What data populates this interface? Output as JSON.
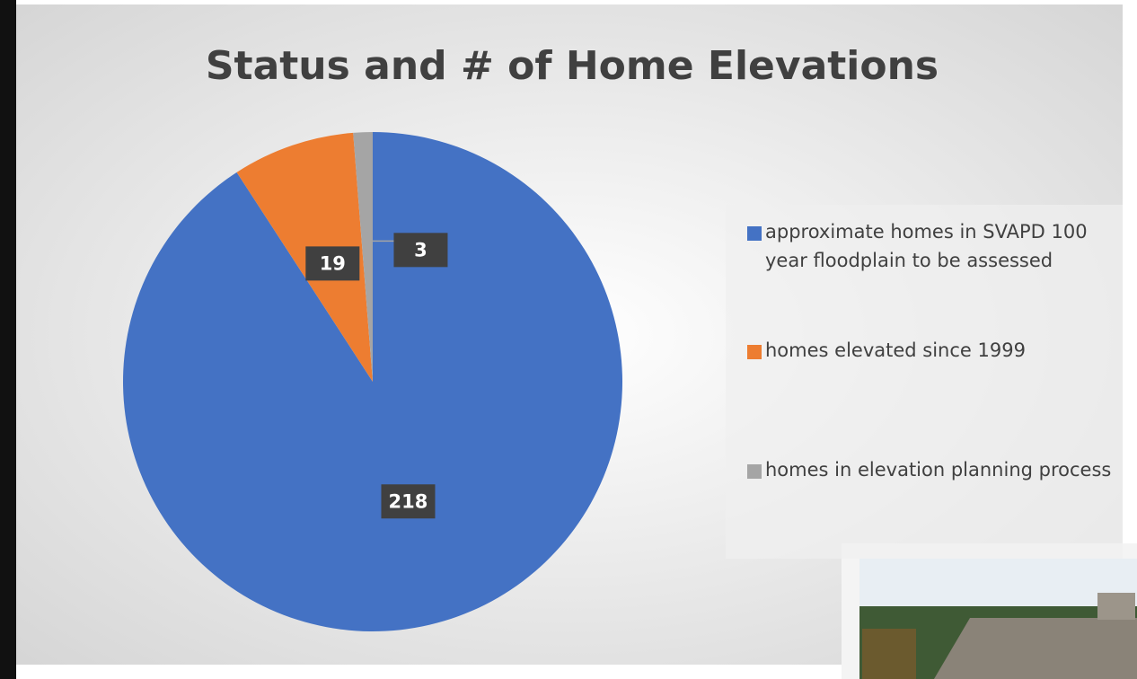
{
  "chart_data": {
    "type": "pie",
    "title": "Status and # of Home Elevations",
    "categories": [
      "approximate homes in SVAPD 100 year floodplain to be assessed",
      "homes elevated since 1999",
      "homes in elevation planning process"
    ],
    "values": [
      218,
      19,
      3
    ],
    "colors": [
      "#4472c4",
      "#ed7d31",
      "#a5a5a5"
    ],
    "legend": "right"
  }
}
